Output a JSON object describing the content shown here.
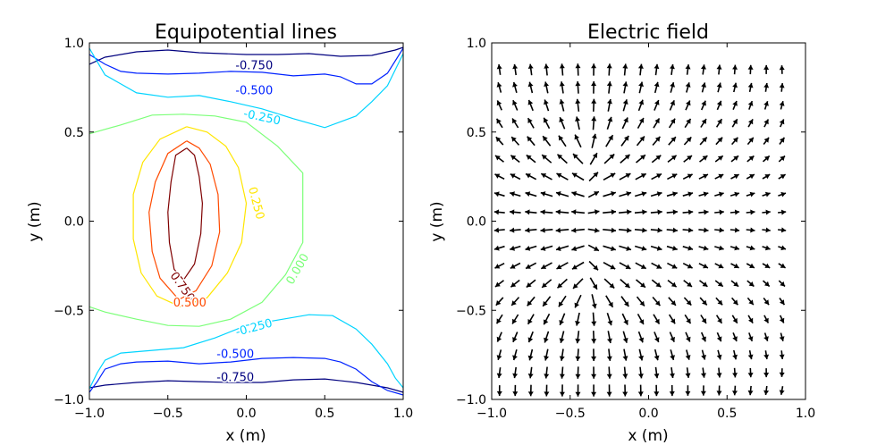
{
  "chart_data": [
    {
      "type": "contour",
      "title": "Equipotential lines",
      "xlabel": "x (m)",
      "ylabel": "y (m)",
      "xlim": [
        -1.0,
        1.0
      ],
      "ylim": [
        -1.0,
        1.0
      ],
      "xticks": [
        "−1.0",
        "−0.5",
        "0.0",
        "0.5",
        "1.0"
      ],
      "yticks": [
        "−1.0",
        "−0.5",
        "0.0",
        "0.5",
        "1.0"
      ],
      "grid": false,
      "levels": [
        {
          "value": -0.75,
          "label": "-0.750",
          "color": "#00007f",
          "paths": [
            [
              [
                -1.0,
                0.88
              ],
              [
                -0.9,
                0.92
              ],
              [
                -0.7,
                0.95
              ],
              [
                -0.5,
                0.96
              ],
              [
                -0.3,
                0.945
              ],
              [
                0.0,
                0.935
              ],
              [
                0.2,
                0.935
              ],
              [
                0.4,
                0.94
              ],
              [
                0.6,
                0.925
              ],
              [
                0.8,
                0.93
              ],
              [
                0.95,
                0.96
              ],
              [
                1.0,
                0.975
              ]
            ],
            [
              [
                -1.0,
                -0.935
              ],
              [
                -0.9,
                -0.92
              ],
              [
                -0.7,
                -0.905
              ],
              [
                -0.5,
                -0.895
              ],
              [
                -0.3,
                -0.9
              ],
              [
                -0.1,
                -0.905
              ],
              [
                0.1,
                -0.905
              ],
              [
                0.3,
                -0.89
              ],
              [
                0.5,
                -0.885
              ],
              [
                0.7,
                -0.905
              ],
              [
                0.9,
                -0.935
              ],
              [
                1.0,
                -0.96
              ]
            ]
          ]
        },
        {
          "value": -0.5,
          "label": "-0.500",
          "color": "#0022ff",
          "paths": [
            [
              [
                -1.0,
                0.935
              ],
              [
                -0.9,
                0.88
              ],
              [
                -0.8,
                0.84
              ],
              [
                -0.7,
                0.83
              ],
              [
                -0.5,
                0.825
              ],
              [
                -0.3,
                0.83
              ],
              [
                -0.1,
                0.84
              ],
              [
                0.1,
                0.835
              ],
              [
                0.3,
                0.815
              ],
              [
                0.5,
                0.825
              ],
              [
                0.6,
                0.81
              ],
              [
                0.7,
                0.77
              ],
              [
                0.8,
                0.77
              ],
              [
                0.9,
                0.83
              ],
              [
                1.0,
                0.97
              ]
            ],
            [
              [
                -1.0,
                -0.96
              ],
              [
                -0.95,
                -0.9
              ],
              [
                -0.9,
                -0.83
              ],
              [
                -0.8,
                -0.8
              ],
              [
                -0.7,
                -0.79
              ],
              [
                -0.5,
                -0.785
              ],
              [
                -0.3,
                -0.8
              ],
              [
                -0.1,
                -0.79
              ],
              [
                0.1,
                -0.77
              ],
              [
                0.3,
                -0.765
              ],
              [
                0.5,
                -0.77
              ],
              [
                0.6,
                -0.79
              ],
              [
                0.7,
                -0.83
              ],
              [
                0.8,
                -0.9
              ],
              [
                0.9,
                -0.95
              ],
              [
                1.0,
                -0.975
              ]
            ]
          ]
        },
        {
          "value": -0.25,
          "label": "-0.250",
          "color": "#00d4ff",
          "paths": [
            [
              [
                -1.0,
                0.97
              ],
              [
                -0.9,
                0.82
              ],
              [
                -0.8,
                0.77
              ],
              [
                -0.7,
                0.72
              ],
              [
                -0.5,
                0.695
              ],
              [
                -0.3,
                0.705
              ],
              [
                -0.1,
                0.67
              ],
              [
                0.1,
                0.63
              ],
              [
                0.3,
                0.575
              ],
              [
                0.5,
                0.525
              ],
              [
                0.7,
                0.59
              ],
              [
                0.8,
                0.67
              ],
              [
                0.9,
                0.76
              ],
              [
                1.0,
                0.94
              ]
            ],
            [
              [
                -1.0,
                -0.94
              ],
              [
                -0.95,
                -0.85
              ],
              [
                -0.9,
                -0.78
              ],
              [
                -0.8,
                -0.74
              ],
              [
                -0.6,
                -0.725
              ],
              [
                -0.4,
                -0.71
              ],
              [
                -0.2,
                -0.655
              ],
              [
                0.0,
                -0.585
              ],
              [
                0.2,
                -0.555
              ],
              [
                0.4,
                -0.525
              ],
              [
                0.55,
                -0.53
              ],
              [
                0.7,
                -0.605
              ],
              [
                0.8,
                -0.69
              ],
              [
                0.9,
                -0.8
              ],
              [
                0.95,
                -0.88
              ],
              [
                1.0,
                -0.935
              ]
            ]
          ]
        },
        {
          "value": 0.0,
          "label": "0.000",
          "color": "#7cff79",
          "paths": [
            [
              [
                -1.0,
                0.49
              ],
              [
                -0.8,
                0.54
              ],
              [
                -0.6,
                0.595
              ],
              [
                -0.4,
                0.6
              ],
              [
                -0.2,
                0.59
              ],
              [
                0.0,
                0.555
              ],
              [
                0.2,
                0.42
              ],
              [
                0.36,
                0.27
              ],
              [
                0.36,
                0.13
              ],
              [
                0.36,
                -0.12
              ],
              [
                0.25,
                -0.3
              ],
              [
                0.1,
                -0.455
              ],
              [
                -0.1,
                -0.55
              ],
              [
                -0.3,
                -0.59
              ],
              [
                -0.5,
                -0.585
              ],
              [
                -0.7,
                -0.55
              ],
              [
                -0.9,
                -0.51
              ],
              [
                -1.0,
                -0.48
              ]
            ]
          ]
        },
        {
          "value": 0.25,
          "label": "0.250",
          "color": "#ffe600",
          "paths": [
            [
              [
                -0.38,
                0.53
              ],
              [
                -0.55,
                0.46
              ],
              [
                -0.66,
                0.33
              ],
              [
                -0.72,
                0.15
              ],
              [
                -0.72,
                -0.1
              ],
              [
                -0.67,
                -0.29
              ],
              [
                -0.57,
                -0.42
              ],
              [
                -0.42,
                -0.48
              ],
              [
                -0.25,
                -0.43
              ],
              [
                -0.12,
                -0.29
              ],
              [
                -0.03,
                -0.12
              ],
              [
                0.0,
                0.1
              ],
              [
                -0.05,
                0.3
              ],
              [
                -0.13,
                0.42
              ],
              [
                -0.25,
                0.5
              ],
              [
                -0.38,
                0.53
              ]
            ]
          ]
        },
        {
          "value": 0.5,
          "label": "0.500",
          "color": "#ff4a00",
          "paths": [
            [
              [
                -0.38,
                0.45
              ],
              [
                -0.5,
                0.38
              ],
              [
                -0.58,
                0.22
              ],
              [
                -0.62,
                0.05
              ],
              [
                -0.6,
                -0.17
              ],
              [
                -0.55,
                -0.32
              ],
              [
                -0.43,
                -0.44
              ],
              [
                -0.32,
                -0.39
              ],
              [
                -0.22,
                -0.25
              ],
              [
                -0.17,
                -0.06
              ],
              [
                -0.18,
                0.15
              ],
              [
                -0.23,
                0.32
              ],
              [
                -0.3,
                0.41
              ],
              [
                -0.38,
                0.45
              ]
            ]
          ]
        },
        {
          "value": 0.75,
          "label": "0.750",
          "color": "#7f0000",
          "paths": [
            [
              [
                -0.38,
                0.41
              ],
              [
                -0.45,
                0.37
              ],
              [
                -0.48,
                0.22
              ],
              [
                -0.5,
                0.05
              ],
              [
                -0.49,
                -0.12
              ],
              [
                -0.46,
                -0.27
              ],
              [
                -0.4,
                -0.33
              ],
              [
                -0.33,
                -0.24
              ],
              [
                -0.29,
                -0.07
              ],
              [
                -0.28,
                0.1
              ],
              [
                -0.3,
                0.25
              ],
              [
                -0.33,
                0.37
              ],
              [
                -0.38,
                0.41
              ]
            ]
          ]
        }
      ],
      "contour_labels": [
        {
          "text": "-0.750",
          "x": 0.05,
          "y": 0.87,
          "rot": 0,
          "color": "#00007f"
        },
        {
          "text": "-0.500",
          "x": 0.05,
          "y": 0.73,
          "rot": 0,
          "color": "#0022ff"
        },
        {
          "text": "-0.250",
          "x": 0.1,
          "y": 0.58,
          "rot": 12,
          "color": "#00d4ff"
        },
        {
          "text": "0.250",
          "x": 0.06,
          "y": 0.1,
          "rot": 75,
          "color": "#ffe600"
        },
        {
          "text": "0.000",
          "x": 0.33,
          "y": -0.27,
          "rot": -60,
          "color": "#7cff79"
        },
        {
          "text": "0.750",
          "x": -0.41,
          "y": -0.37,
          "rot": 55,
          "color": "#7f0000"
        },
        {
          "text": "0.500",
          "x": -0.36,
          "y": -0.46,
          "rot": 0,
          "color": "#ff4a00"
        },
        {
          "text": "-0.250",
          "x": 0.05,
          "y": -0.6,
          "rot": -15,
          "color": "#00d4ff"
        },
        {
          "text": "-0.500",
          "x": -0.07,
          "y": -0.75,
          "rot": 0,
          "color": "#0022ff"
        },
        {
          "text": "-0.750",
          "x": -0.07,
          "y": -0.88,
          "rot": 0,
          "color": "#00007f"
        }
      ]
    },
    {
      "type": "quiver",
      "title": "Electric field",
      "xlabel": "x (m)",
      "ylabel": "y (m)",
      "xlim": [
        -1.0,
        1.0
      ],
      "ylim": [
        -1.0,
        1.0
      ],
      "xticks": [
        "−1.0",
        "−0.5",
        "0.0",
        "0.5",
        "1.0"
      ],
      "yticks": [
        "−1.0",
        "−0.5",
        "0.0",
        "0.5",
        "1.0"
      ],
      "grid": false,
      "grid_points": 19,
      "charge": {
        "x": -0.375,
        "y": 0.0,
        "half_length": 0.45,
        "segments": 20
      },
      "images": [
        {
          "x": -0.375,
          "y": 2.0,
          "sign": -1,
          "half_length": 0.45
        },
        {
          "x": -0.375,
          "y": -2.0,
          "sign": -1,
          "half_length": 0.45
        }
      ],
      "arrow_color": "#000000"
    }
  ]
}
